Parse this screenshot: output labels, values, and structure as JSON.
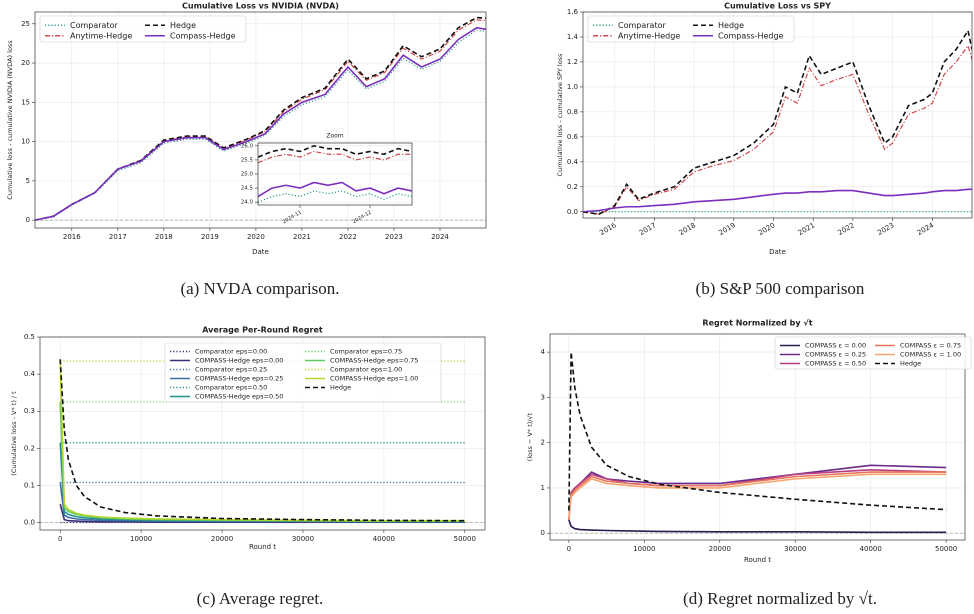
{
  "chart_data": [
    {
      "type": "line",
      "title": "Cumulative Loss vs NVIDIA (NVDA)",
      "xlabel": "Date",
      "ylabel": "Cumulative loss - cumulative NVIDIA (NVDA) loss",
      "caption": "(a) NVDA comparison.",
      "grid": true,
      "reference_line": 0,
      "x": [
        2015.2,
        2015.6,
        2016.0,
        2016.5,
        2017.0,
        2017.5,
        2018.0,
        2018.5,
        2018.9,
        2019.3,
        2019.8,
        2020.2,
        2020.6,
        2021.0,
        2021.5,
        2022.0,
        2022.4,
        2022.8,
        2023.2,
        2023.6,
        2024.0,
        2024.4,
        2024.8,
        2025.0
      ],
      "xlim": [
        2015.2,
        2025.0
      ],
      "xticks": [
        2016,
        2017,
        2018,
        2019,
        2020,
        2021,
        2022,
        2023,
        2024
      ],
      "ylim": [
        -1,
        26.5
      ],
      "yticks": [
        0,
        5,
        10,
        15,
        20,
        25
      ],
      "series": [
        {
          "name": "Comparator",
          "color": "#2a9d8f",
          "style": "dotted",
          "values": [
            0,
            0.4,
            1.9,
            3.4,
            6.3,
            7.3,
            9.8,
            10.3,
            10.3,
            8.8,
            9.8,
            10.8,
            13.2,
            14.7,
            15.7,
            19.1,
            16.7,
            17.7,
            20.6,
            19.2,
            20.2,
            22.6,
            24.2,
            24.0
          ]
        },
        {
          "name": "Anytime-Hedge",
          "color": "#d0484c",
          "style": "dashdot",
          "values": [
            0,
            0.5,
            2,
            3.5,
            6.5,
            7.6,
            10.1,
            10.6,
            10.6,
            9.1,
            10.2,
            11.3,
            13.8,
            15.4,
            16.6,
            20.2,
            17.8,
            18.8,
            21.9,
            20.5,
            21.5,
            24.2,
            25.5,
            25.4
          ]
        },
        {
          "name": "Hedge",
          "color": "#111111",
          "style": "dashed",
          "values": [
            0,
            0.5,
            2,
            3.5,
            6.5,
            7.6,
            10.2,
            10.7,
            10.7,
            9.2,
            10.3,
            11.4,
            14,
            15.6,
            16.8,
            20.5,
            18,
            19,
            22.2,
            20.8,
            21.8,
            24.5,
            25.8,
            25.7
          ]
        },
        {
          "name": "Compass-Hedge",
          "color": "#7b2fbe",
          "style": "solid",
          "values": [
            0,
            0.5,
            2,
            3.5,
            6.5,
            7.5,
            10,
            10.5,
            10.5,
            9,
            10,
            11,
            13.5,
            15,
            16,
            19.5,
            17,
            18,
            21,
            19.5,
            20.5,
            23,
            24.5,
            24.3
          ]
        }
      ]
    },
    {
      "type": "line",
      "title": "Zoom",
      "grid": true,
      "x": [
        0,
        1,
        2,
        3,
        4,
        5,
        6,
        7,
        8,
        9,
        10,
        11
      ],
      "xlim": [
        0,
        11
      ],
      "xticks": [
        {
          "value": 3,
          "label": "2024-11"
        },
        {
          "value": 8,
          "label": "2024-12"
        }
      ],
      "ylim": [
        23.9,
        26.1
      ],
      "yticks": [
        {
          "value": 24.0,
          "label": "24.0"
        },
        {
          "value": 24.5,
          "label": "24.5"
        },
        {
          "value": 25.0,
          "label": "25.0"
        },
        {
          "value": 25.5,
          "label": "25.5"
        },
        {
          "value": 26.0,
          "label": "26.0"
        }
      ],
      "series": [
        {
          "name": "Comparator",
          "color": "#2a9d8f",
          "style": "dotted",
          "values": [
            24.0,
            24.2,
            24.3,
            24.2,
            24.4,
            24.3,
            24.4,
            24.2,
            24.3,
            24.1,
            24.3,
            24.2
          ]
        },
        {
          "name": "Anytime-Hedge",
          "color": "#d0484c",
          "style": "dashdot",
          "values": [
            25.4,
            25.6,
            25.7,
            25.6,
            25.8,
            25.7,
            25.7,
            25.5,
            25.6,
            25.5,
            25.7,
            25.7
          ]
        },
        {
          "name": "Hedge",
          "color": "#111111",
          "style": "dashed",
          "values": [
            25.6,
            25.8,
            25.9,
            25.8,
            26.0,
            25.9,
            25.9,
            25.7,
            25.8,
            25.7,
            25.9,
            25.8
          ]
        },
        {
          "name": "Compass-Hedge",
          "color": "#7b2fbe",
          "style": "solid",
          "values": [
            24.2,
            24.5,
            24.6,
            24.5,
            24.7,
            24.6,
            24.7,
            24.4,
            24.5,
            24.3,
            24.5,
            24.4
          ]
        }
      ]
    },
    {
      "type": "line",
      "title": "Cumulative Loss vs SPY",
      "xlabel": "Date",
      "ylabel": "Cumulative loss - cumulative SPY loss",
      "caption": "(b) S&P 500 comparison",
      "grid": true,
      "x": [
        2015.2,
        2015.6,
        2016.0,
        2016.3,
        2016.6,
        2017.0,
        2017.5,
        2018.0,
        2018.5,
        2019.0,
        2019.5,
        2020.0,
        2020.3,
        2020.6,
        2020.9,
        2021.2,
        2021.6,
        2022.0,
        2022.4,
        2022.8,
        2023.0,
        2023.4,
        2023.8,
        2024.0,
        2024.3,
        2024.6,
        2024.9,
        2025.0
      ],
      "xlim": [
        2015.2,
        2025.0
      ],
      "xticks": [
        2016,
        2017,
        2018,
        2019,
        2020,
        2021,
        2022,
        2023,
        2024
      ],
      "ylim": [
        -0.05,
        1.6
      ],
      "yticks": [
        {
          "value": 0,
          "label": "0.0"
        },
        {
          "value": 0.2,
          "label": "0.2"
        },
        {
          "value": 0.4,
          "label": "0.4"
        },
        {
          "value": 0.6,
          "label": "0.6"
        },
        {
          "value": 0.8,
          "label": "0.8"
        },
        {
          "value": 1.0,
          "label": "1.0"
        },
        {
          "value": 1.2,
          "label": "1.2"
        },
        {
          "value": 1.4,
          "label": "1.4"
        },
        {
          "value": 1.6,
          "label": "1.6"
        }
      ],
      "series": [
        {
          "name": "Comparator",
          "color": "#2a9d8f",
          "style": "dotted",
          "values": [
            0,
            0,
            0,
            0,
            0,
            0,
            0,
            0,
            0,
            0,
            0,
            0,
            0,
            0,
            0,
            0,
            0,
            0,
            0,
            0,
            0,
            0,
            0,
            0,
            0,
            0,
            0,
            0
          ]
        },
        {
          "name": "Anytime-Hedge",
          "color": "#d0484c",
          "style": "dashdot",
          "values": [
            0,
            -0.02,
            0.04,
            0.2,
            0.09,
            0.14,
            0.18,
            0.32,
            0.37,
            0.41,
            0.5,
            0.64,
            0.92,
            0.87,
            1.15,
            1.01,
            1.06,
            1.1,
            0.78,
            0.5,
            0.55,
            0.78,
            0.83,
            0.87,
            1.1,
            1.2,
            1.33,
            1.22
          ]
        },
        {
          "name": "Hedge",
          "color": "#111111",
          "style": "dashed",
          "values": [
            0,
            -0.02,
            0.05,
            0.22,
            0.1,
            0.15,
            0.2,
            0.35,
            0.4,
            0.45,
            0.55,
            0.7,
            1.0,
            0.95,
            1.25,
            1.1,
            1.15,
            1.2,
            0.85,
            0.55,
            0.6,
            0.85,
            0.9,
            0.95,
            1.2,
            1.3,
            1.45,
            1.3
          ]
        },
        {
          "name": "Compass-Hedge",
          "color": "#7b2fbe",
          "style": "solid",
          "values": [
            0,
            0.01,
            0.03,
            0.04,
            0.04,
            0.05,
            0.06,
            0.08,
            0.09,
            0.1,
            0.12,
            0.14,
            0.15,
            0.15,
            0.16,
            0.16,
            0.17,
            0.17,
            0.15,
            0.13,
            0.13,
            0.14,
            0.15,
            0.16,
            0.17,
            0.17,
            0.18,
            0.18
          ]
        }
      ]
    },
    {
      "type": "line",
      "title": "Average Per-Round Regret",
      "xlabel": "Round t",
      "ylabel": "(Cumulative loss - V* t) / t",
      "caption": "(c) Average regret.",
      "grid": true,
      "reference_line": 0,
      "x": [
        0,
        500,
        1000,
        2000,
        3000,
        5000,
        8000,
        12000,
        20000,
        30000,
        40000,
        50000
      ],
      "xlim": [
        -2500,
        52500
      ],
      "xticks": [
        0,
        10000,
        20000,
        30000,
        40000,
        50000
      ],
      "ylim": [
        -0.02,
        0.5
      ],
      "yticks": [
        {
          "value": 0,
          "label": "0.0"
        },
        {
          "value": 0.1,
          "label": "0.1"
        },
        {
          "value": 0.2,
          "label": "0.2"
        },
        {
          "value": 0.3,
          "label": "0.3"
        },
        {
          "value": 0.4,
          "label": "0.4"
        },
        {
          "value": 0.5,
          "label": "0.5"
        }
      ],
      "series": [
        {
          "name": "Comparator eps=0.00",
          "color": "#3b2f7a",
          "style": "dotted",
          "values": [
            0,
            0,
            0,
            0,
            0,
            0,
            0,
            0,
            0,
            0,
            0,
            0
          ]
        },
        {
          "name": "COMPASS-Hedge eps=0.00",
          "color": "#3b2f7a",
          "style": "solid",
          "values": [
            0.05,
            0.008,
            0.005,
            0.004,
            0.003,
            0.002,
            0.002,
            0.001,
            0.001,
            0.001,
            0.001,
            0.001
          ]
        },
        {
          "name": "Comparator eps=0.25",
          "color": "#3b6ea5",
          "style": "dotted",
          "values": [
            0.108,
            0.108,
            0.108,
            0.108,
            0.108,
            0.108,
            0.108,
            0.108,
            0.108,
            0.108,
            0.108,
            0.108
          ]
        },
        {
          "name": "COMPASS-Hedge eps=0.25",
          "color": "#3b6ea5",
          "style": "solid",
          "values": [
            0.108,
            0.02,
            0.014,
            0.01,
            0.008,
            0.006,
            0.005,
            0.004,
            0.003,
            0.003,
            0.002,
            0.002
          ]
        },
        {
          "name": "Comparator eps=0.50",
          "color": "#21918c",
          "style": "dotted",
          "values": [
            0.215,
            0.215,
            0.215,
            0.215,
            0.215,
            0.215,
            0.215,
            0.215,
            0.215,
            0.215,
            0.215,
            0.215
          ]
        },
        {
          "name": "COMPASS-Hedge eps=0.50",
          "color": "#21918c",
          "style": "solid",
          "values": [
            0.215,
            0.03,
            0.022,
            0.016,
            0.013,
            0.01,
            0.008,
            0.006,
            0.005,
            0.004,
            0.003,
            0.003
          ]
        },
        {
          "name": "Comparator eps=0.75",
          "color": "#5ec962",
          "style": "dotted",
          "values": [
            0.325,
            0.325,
            0.325,
            0.325,
            0.325,
            0.325,
            0.325,
            0.325,
            0.325,
            0.325,
            0.325,
            0.325
          ]
        },
        {
          "name": "COMPASS-Hedge eps=0.75",
          "color": "#5ec962",
          "style": "solid",
          "values": [
            0.325,
            0.04,
            0.03,
            0.022,
            0.018,
            0.013,
            0.01,
            0.008,
            0.006,
            0.005,
            0.004,
            0.004
          ]
        },
        {
          "name": "Comparator eps=1.00",
          "color": "#c8c82c",
          "style": "dotted",
          "values": [
            0.435,
            0.435,
            0.435,
            0.435,
            0.435,
            0.435,
            0.435,
            0.435,
            0.435,
            0.435,
            0.435,
            0.435
          ]
        },
        {
          "name": "COMPASS-Hedge eps=1.00",
          "color": "#b5d62c",
          "style": "solid",
          "values": [
            0.435,
            0.05,
            0.035,
            0.025,
            0.02,
            0.015,
            0.012,
            0.01,
            0.008,
            0.006,
            0.005,
            0.005
          ]
        },
        {
          "name": "Hedge",
          "color": "#111111",
          "style": "dashed",
          "values": [
            0.44,
            0.25,
            0.17,
            0.1,
            0.07,
            0.042,
            0.027,
            0.018,
            0.011,
            0.008,
            0.006,
            0.005
          ]
        }
      ]
    },
    {
      "type": "line",
      "title": "Regret Normalized by √t",
      "xlabel": "Round t",
      "ylabel": "(loss − V* t)/√t",
      "caption": "(d) Regret normalized by √t.",
      "grid": true,
      "reference_line": 0,
      "x": [
        0,
        300,
        800,
        1500,
        3000,
        5000,
        8000,
        12000,
        20000,
        30000,
        40000,
        50000
      ],
      "xlim": [
        -2500,
        52500
      ],
      "xticks": [
        0,
        10000,
        20000,
        30000,
        40000,
        50000
      ],
      "ylim": [
        -0.15,
        4.4
      ],
      "yticks": [
        0,
        1,
        2,
        3,
        4
      ],
      "series": [
        {
          "name": "COMPASS ε = 0.00",
          "color": "#2d1b4e",
          "style": "solid",
          "values": [
            0.3,
            0.15,
            0.1,
            0.08,
            0.07,
            0.06,
            0.05,
            0.04,
            0.03,
            0.03,
            0.02,
            0.02
          ]
        },
        {
          "name": "COMPASS ε = 0.25",
          "color": "#6a2a8a",
          "style": "solid",
          "values": [
            0.3,
            0.9,
            1.0,
            1.1,
            1.35,
            1.2,
            1.15,
            1.1,
            1.1,
            1.3,
            1.5,
            1.45
          ]
        },
        {
          "name": "COMPASS ε = 0.50",
          "color": "#b83d7f",
          "style": "solid",
          "values": [
            0.3,
            0.9,
            1.0,
            1.1,
            1.3,
            1.2,
            1.1,
            1.05,
            1.05,
            1.3,
            1.4,
            1.35
          ]
        },
        {
          "name": "COMPASS ε = 0.75",
          "color": "#e8735d",
          "style": "solid",
          "values": [
            0.3,
            0.85,
            0.95,
            1.05,
            1.25,
            1.15,
            1.1,
            1.05,
            1.05,
            1.25,
            1.35,
            1.35
          ]
        },
        {
          "name": "COMPASS ε = 1.00",
          "color": "#f5a66e",
          "style": "solid",
          "values": [
            0.3,
            0.8,
            0.9,
            1.0,
            1.2,
            1.1,
            1.05,
            1.0,
            1.0,
            1.2,
            1.3,
            1.3
          ]
        },
        {
          "name": "Hedge",
          "color": "#111111",
          "style": "dashed",
          "values": [
            0.5,
            4.0,
            3.2,
            2.6,
            1.9,
            1.5,
            1.25,
            1.08,
            0.9,
            0.75,
            0.62,
            0.52
          ]
        }
      ]
    }
  ]
}
